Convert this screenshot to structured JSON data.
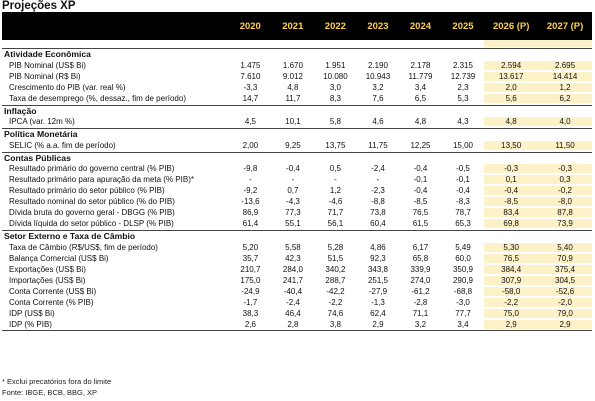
{
  "title": "Projeções XP",
  "years": [
    "2020",
    "2021",
    "2022",
    "2023",
    "2024",
    "2025",
    "2026 (P)",
    "2027 (P)"
  ],
  "sections": [
    {
      "name": "Atividade Econômica",
      "rows": [
        {
          "label": "PIB Nominal (US$ Bi)",
          "values": [
            "1.475",
            "1.670",
            "1.951",
            "2.190",
            "2.178",
            "2.315",
            "2.594",
            "2.695"
          ]
        },
        {
          "label": "PIB Nominal (R$ Bi)",
          "values": [
            "7.610",
            "9.012",
            "10.080",
            "10.943",
            "11.779",
            "12.739",
            "13.617",
            "14.414"
          ]
        },
        {
          "label": "Crescimento do PIB (var. real %)",
          "values": [
            "-3,3",
            "4,8",
            "3,0",
            "3,2",
            "3,4",
            "2,3",
            "2,0",
            "1,2"
          ]
        },
        {
          "label": "Taxa de desemprego (%, dessaz., fim de período)",
          "values": [
            "14,7",
            "11,7",
            "8,3",
            "7,6",
            "6,5",
            "5,3",
            "5,6",
            "6,2"
          ]
        }
      ]
    },
    {
      "name": "Inflação",
      "rows": [
        {
          "label": "IPCA (var. 12m %)",
          "values": [
            "4,5",
            "10,1",
            "5,8",
            "4,6",
            "4,8",
            "4,3",
            "4,8",
            "4,0"
          ]
        }
      ]
    },
    {
      "name": "Política Monetária",
      "rows": [
        {
          "label": "SELIC (% a.a. fim de período)",
          "values": [
            "2,00",
            "9,25",
            "13,75",
            "11,75",
            "12,25",
            "15,00",
            "13,50",
            "11,50"
          ]
        }
      ]
    },
    {
      "name": "Contas Públicas",
      "rows": [
        {
          "label": "Resultado primário do governo central (% PIB)",
          "values": [
            "-9,8",
            "-0,4",
            "0,5",
            "-2,4",
            "-0,4",
            "-0,5",
            "-0,3",
            "-0,3"
          ]
        },
        {
          "label": "Resultado primário para apuração da meta (% PIB)*",
          "values": [
            "-",
            "-",
            "-",
            "-",
            "-0,1",
            "-0,1",
            "0,1",
            "0,3"
          ]
        },
        {
          "label": "Resultado primário do setor público (% PIB)",
          "values": [
            "-9,2",
            "0,7",
            "1,2",
            "-2,3",
            "-0,4",
            "-0,4",
            "-0,4",
            "-0,2"
          ]
        },
        {
          "label": "Resultado nominal do setor público (% do PIB)",
          "values": [
            "-13,6",
            "-4,3",
            "-4,6",
            "-8,8",
            "-8,5",
            "-8,3",
            "-8,5",
            "-8,0"
          ]
        },
        {
          "label": "Dívida bruta do governo geral - DBGG (% PIB)",
          "values": [
            "86,9",
            "77,3",
            "71,7",
            "73,8",
            "76,5",
            "78,7",
            "83,4",
            "87,8"
          ]
        },
        {
          "label": "Dívida líquida do setor público - DLSP (% PIB)",
          "values": [
            "61,4",
            "55,1",
            "56,1",
            "60,4",
            "61,5",
            "65,3",
            "69,8",
            "73,9"
          ]
        }
      ]
    },
    {
      "name": "Setor Externo e Taxa de Câmbio",
      "rows": [
        {
          "label": "Taxa de Câmbio (R$/US$, fim de período)",
          "values": [
            "5,20",
            "5,58",
            "5,28",
            "4,86",
            "6,17",
            "5,49",
            "5,30",
            "5,40"
          ]
        },
        {
          "label": "Balança Comercial (US$ Bi)",
          "values": [
            "35,7",
            "42,3",
            "51,5",
            "92,3",
            "65,8",
            "60,0",
            "76,5",
            "70,9"
          ]
        },
        {
          "label": "Exportações (US$ Bi)",
          "values": [
            "210,7",
            "284,0",
            "340,2",
            "343,8",
            "339,9",
            "350,9",
            "384,4",
            "375,4"
          ]
        },
        {
          "label": "Importações (US$ Bi)",
          "values": [
            "175,0",
            "241,7",
            "288,7",
            "251,5",
            "274,0",
            "290,9",
            "307,9",
            "304,5"
          ]
        },
        {
          "label": "Conta Corrente (US$ Bi)",
          "values": [
            "-24,9",
            "-40,4",
            "-42,2",
            "-27,9",
            "-61,2",
            "-68,8",
            "-58,0",
            "-52,6"
          ]
        },
        {
          "label": "Conta Corrente (% PIB)",
          "values": [
            "-1,7",
            "-2,4",
            "-2,2",
            "-1,3",
            "-2,8",
            "-3,0",
            "-2,2",
            "-2,0"
          ]
        },
        {
          "label": "IDP (US$ Bi)",
          "values": [
            "38,3",
            "46,4",
            "74,6",
            "62,4",
            "71,1",
            "77,7",
            "75,0",
            "79,0"
          ]
        },
        {
          "label": "IDP (% PIB)",
          "values": [
            "2,6",
            "2,8",
            "3,8",
            "2,9",
            "3,2",
            "3,4",
            "2,9",
            "2,9"
          ]
        }
      ]
    }
  ],
  "footnote": "* Exclui precatórios fora do limite",
  "source": "Fonte: IBGE, BCB, BBG, XP"
}
